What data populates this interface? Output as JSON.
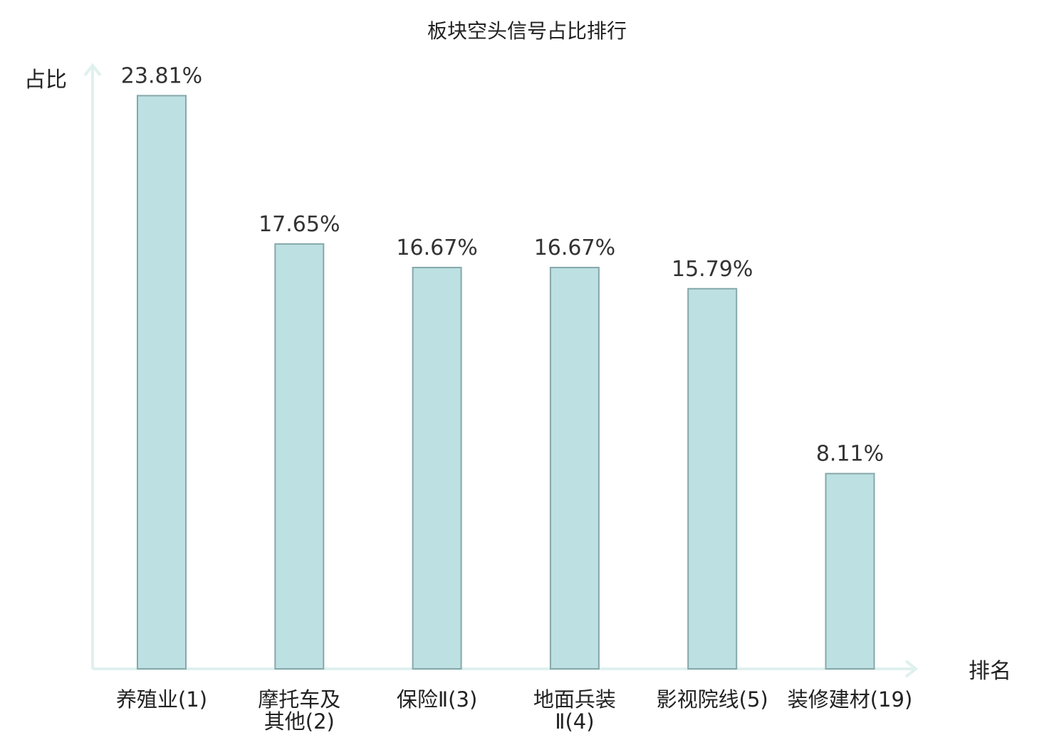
{
  "chart_data": {
    "type": "bar",
    "title": "板块空头信号占比排行",
    "ylabel": "占比",
    "xlabel": "排名",
    "ylim": [
      0,
      25.3
    ],
    "grid": false,
    "categories": [
      {
        "lines": [
          "养殖业(1)"
        ],
        "highlight": false
      },
      {
        "lines": [
          "摩托车及",
          "其他(2)"
        ],
        "highlight": false
      },
      {
        "lines": [
          "保险Ⅱ(3)"
        ],
        "highlight": false
      },
      {
        "lines": [
          "地面兵装",
          "Ⅱ(4)"
        ],
        "highlight": false
      },
      {
        "lines": [
          "影视院线(5)"
        ],
        "highlight": false
      },
      {
        "lines": [
          "装修建材(19)"
        ],
        "highlight": true
      }
    ],
    "values": [
      23.81,
      17.65,
      16.67,
      16.67,
      15.79,
      8.11
    ],
    "value_labels": [
      "23.81%",
      "17.65%",
      "16.67%",
      "16.67%",
      "15.79%",
      "8.11%"
    ]
  },
  "colors": {
    "bar_fill": "#bde0e2",
    "bar_stroke": "#86a8aa",
    "axis": "#dff1ef",
    "highlight_text": "#e0201a",
    "text": "#222222"
  }
}
